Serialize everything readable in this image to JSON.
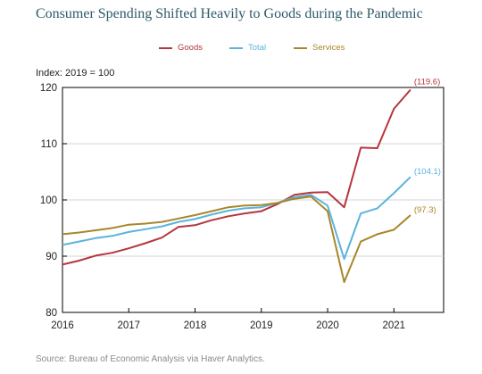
{
  "chart_data": {
    "type": "line",
    "title": "Consumer Spending Shifted Heavily to Goods during the Pandemic",
    "ylabel": "Index: 2019 = 100",
    "ylim": [
      80,
      120
    ],
    "yticks": [
      80,
      90,
      100,
      110,
      120
    ],
    "xlim": [
      2016,
      2021.75
    ],
    "xticks": [
      2016,
      2017,
      2018,
      2019,
      2020,
      2021
    ],
    "grid": "horizontal",
    "legend": "top",
    "x": [
      2016.0,
      2016.25,
      2016.5,
      2016.75,
      2017.0,
      2017.25,
      2017.5,
      2017.75,
      2018.0,
      2018.25,
      2018.5,
      2018.75,
      2019.0,
      2019.25,
      2019.5,
      2019.75,
      2020.0,
      2020.25,
      2020.5,
      2020.75,
      2021.0,
      2021.25
    ],
    "series": [
      {
        "name": "Goods",
        "color": "#b5363e",
        "end_label": "(119.6)",
        "values": [
          88.5,
          89.2,
          90.1,
          90.6,
          91.4,
          92.3,
          93.3,
          95.2,
          95.5,
          96.4,
          97.1,
          97.6,
          98.0,
          99.3,
          100.9,
          101.3,
          101.4,
          98.7,
          109.3,
          109.2,
          116.2,
          119.6
        ]
      },
      {
        "name": "Total",
        "color": "#5ab4dc",
        "end_label": "(104.1)",
        "values": [
          92.0,
          92.6,
          93.2,
          93.6,
          94.3,
          94.8,
          95.3,
          96.1,
          96.6,
          97.4,
          98.1,
          98.5,
          98.7,
          99.5,
          100.5,
          100.9,
          99.0,
          89.5,
          97.6,
          98.5,
          101.2,
          104.1
        ]
      },
      {
        "name": "Services",
        "color": "#a8862a",
        "end_label": "(97.3)",
        "values": [
          93.9,
          94.2,
          94.6,
          95.0,
          95.6,
          95.8,
          96.1,
          96.7,
          97.3,
          98.0,
          98.7,
          99.0,
          99.1,
          99.5,
          100.2,
          100.6,
          98.0,
          85.4,
          92.6,
          93.9,
          94.7,
          97.3
        ]
      }
    ],
    "source": "Source: Bureau of Economic Analysis via Haver Analytics."
  }
}
